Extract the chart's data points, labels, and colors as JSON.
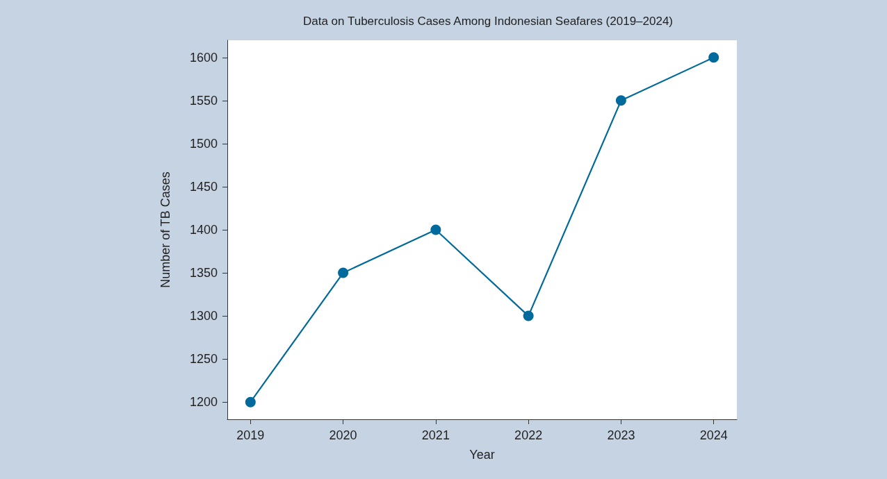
{
  "chart_data": {
    "type": "line",
    "title": "Data on Tuberculosis Cases Among Indonesian Seafares (2019–2024)",
    "xlabel": "Year",
    "ylabel": "Number of TB Cases",
    "x": [
      2019,
      2020,
      2021,
      2022,
      2023,
      2024
    ],
    "series": [
      {
        "color": "#006a9c",
        "values": [
          1200,
          1350,
          1400,
          1300,
          1550,
          1600
        ]
      }
    ],
    "xlim": [
      2018.75,
      2024.25
    ],
    "xticks": [
      2019,
      2020,
      2021,
      2022,
      2023,
      2024
    ],
    "ylim": [
      1180,
      1620
    ],
    "yticks": [
      1200,
      1250,
      1300,
      1350,
      1400,
      1450,
      1500,
      1550,
      1600
    ],
    "grid": false,
    "marker": "circle",
    "line_style": "solid"
  }
}
